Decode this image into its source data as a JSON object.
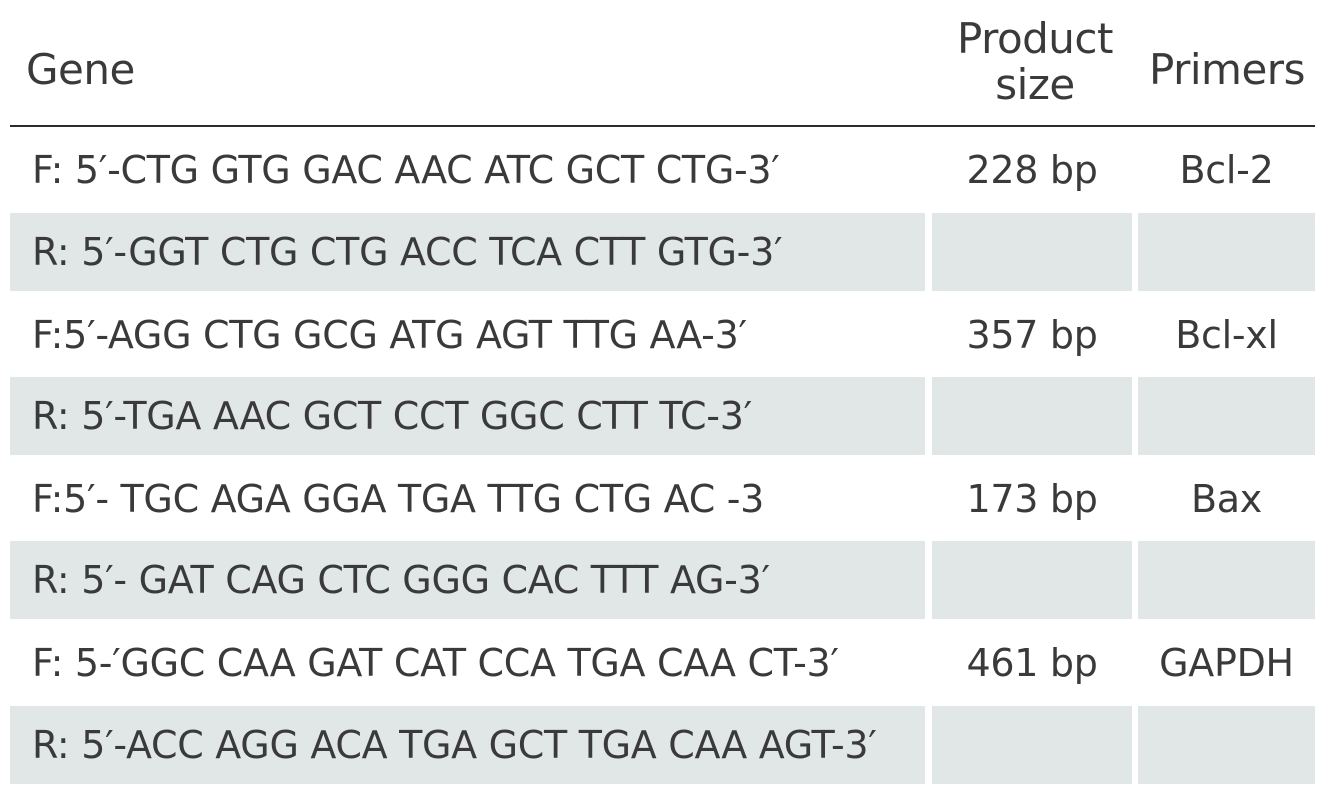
{
  "table": {
    "headers": {
      "gene": "Gene",
      "product_size": "Product size",
      "primers": "Primers"
    },
    "rows": [
      {
        "sequence": "F: 5′-CTG GTG GAC AAC ATC GCT CTG-3′",
        "size": "228 bp",
        "primer": "Bcl-2"
      },
      {
        "sequence": "R: 5′-GGT CTG CTG ACC TCA CTT GTG-3′",
        "size": "",
        "primer": ""
      },
      {
        "sequence": "F:5′-AGG CTG GCG ATG AGT TTG AA-3′",
        "size": "357 bp",
        "primer": "Bcl-xl"
      },
      {
        "sequence": "R: 5′-TGA AAC GCT CCT GGC CTT TC-3′",
        "size": "",
        "primer": ""
      },
      {
        "sequence": "F:5′- TGC AGA GGA TGA TTG CTG AC -3",
        "size": "173 bp",
        "primer": "Bax"
      },
      {
        "sequence": "R: 5′- GAT CAG CTC GGG CAC TTT AG-3′",
        "size": "",
        "primer": ""
      },
      {
        "sequence": "F: 5-′GGC CAA GAT CAT CCA TGA CAA CT-3′",
        "size": "461 bp",
        "primer": "GAPDH"
      },
      {
        "sequence": "R: 5′-ACC AGG ACA TGA GCT TGA CAA AGT-3′",
        "size": "",
        "primer": ""
      }
    ]
  }
}
